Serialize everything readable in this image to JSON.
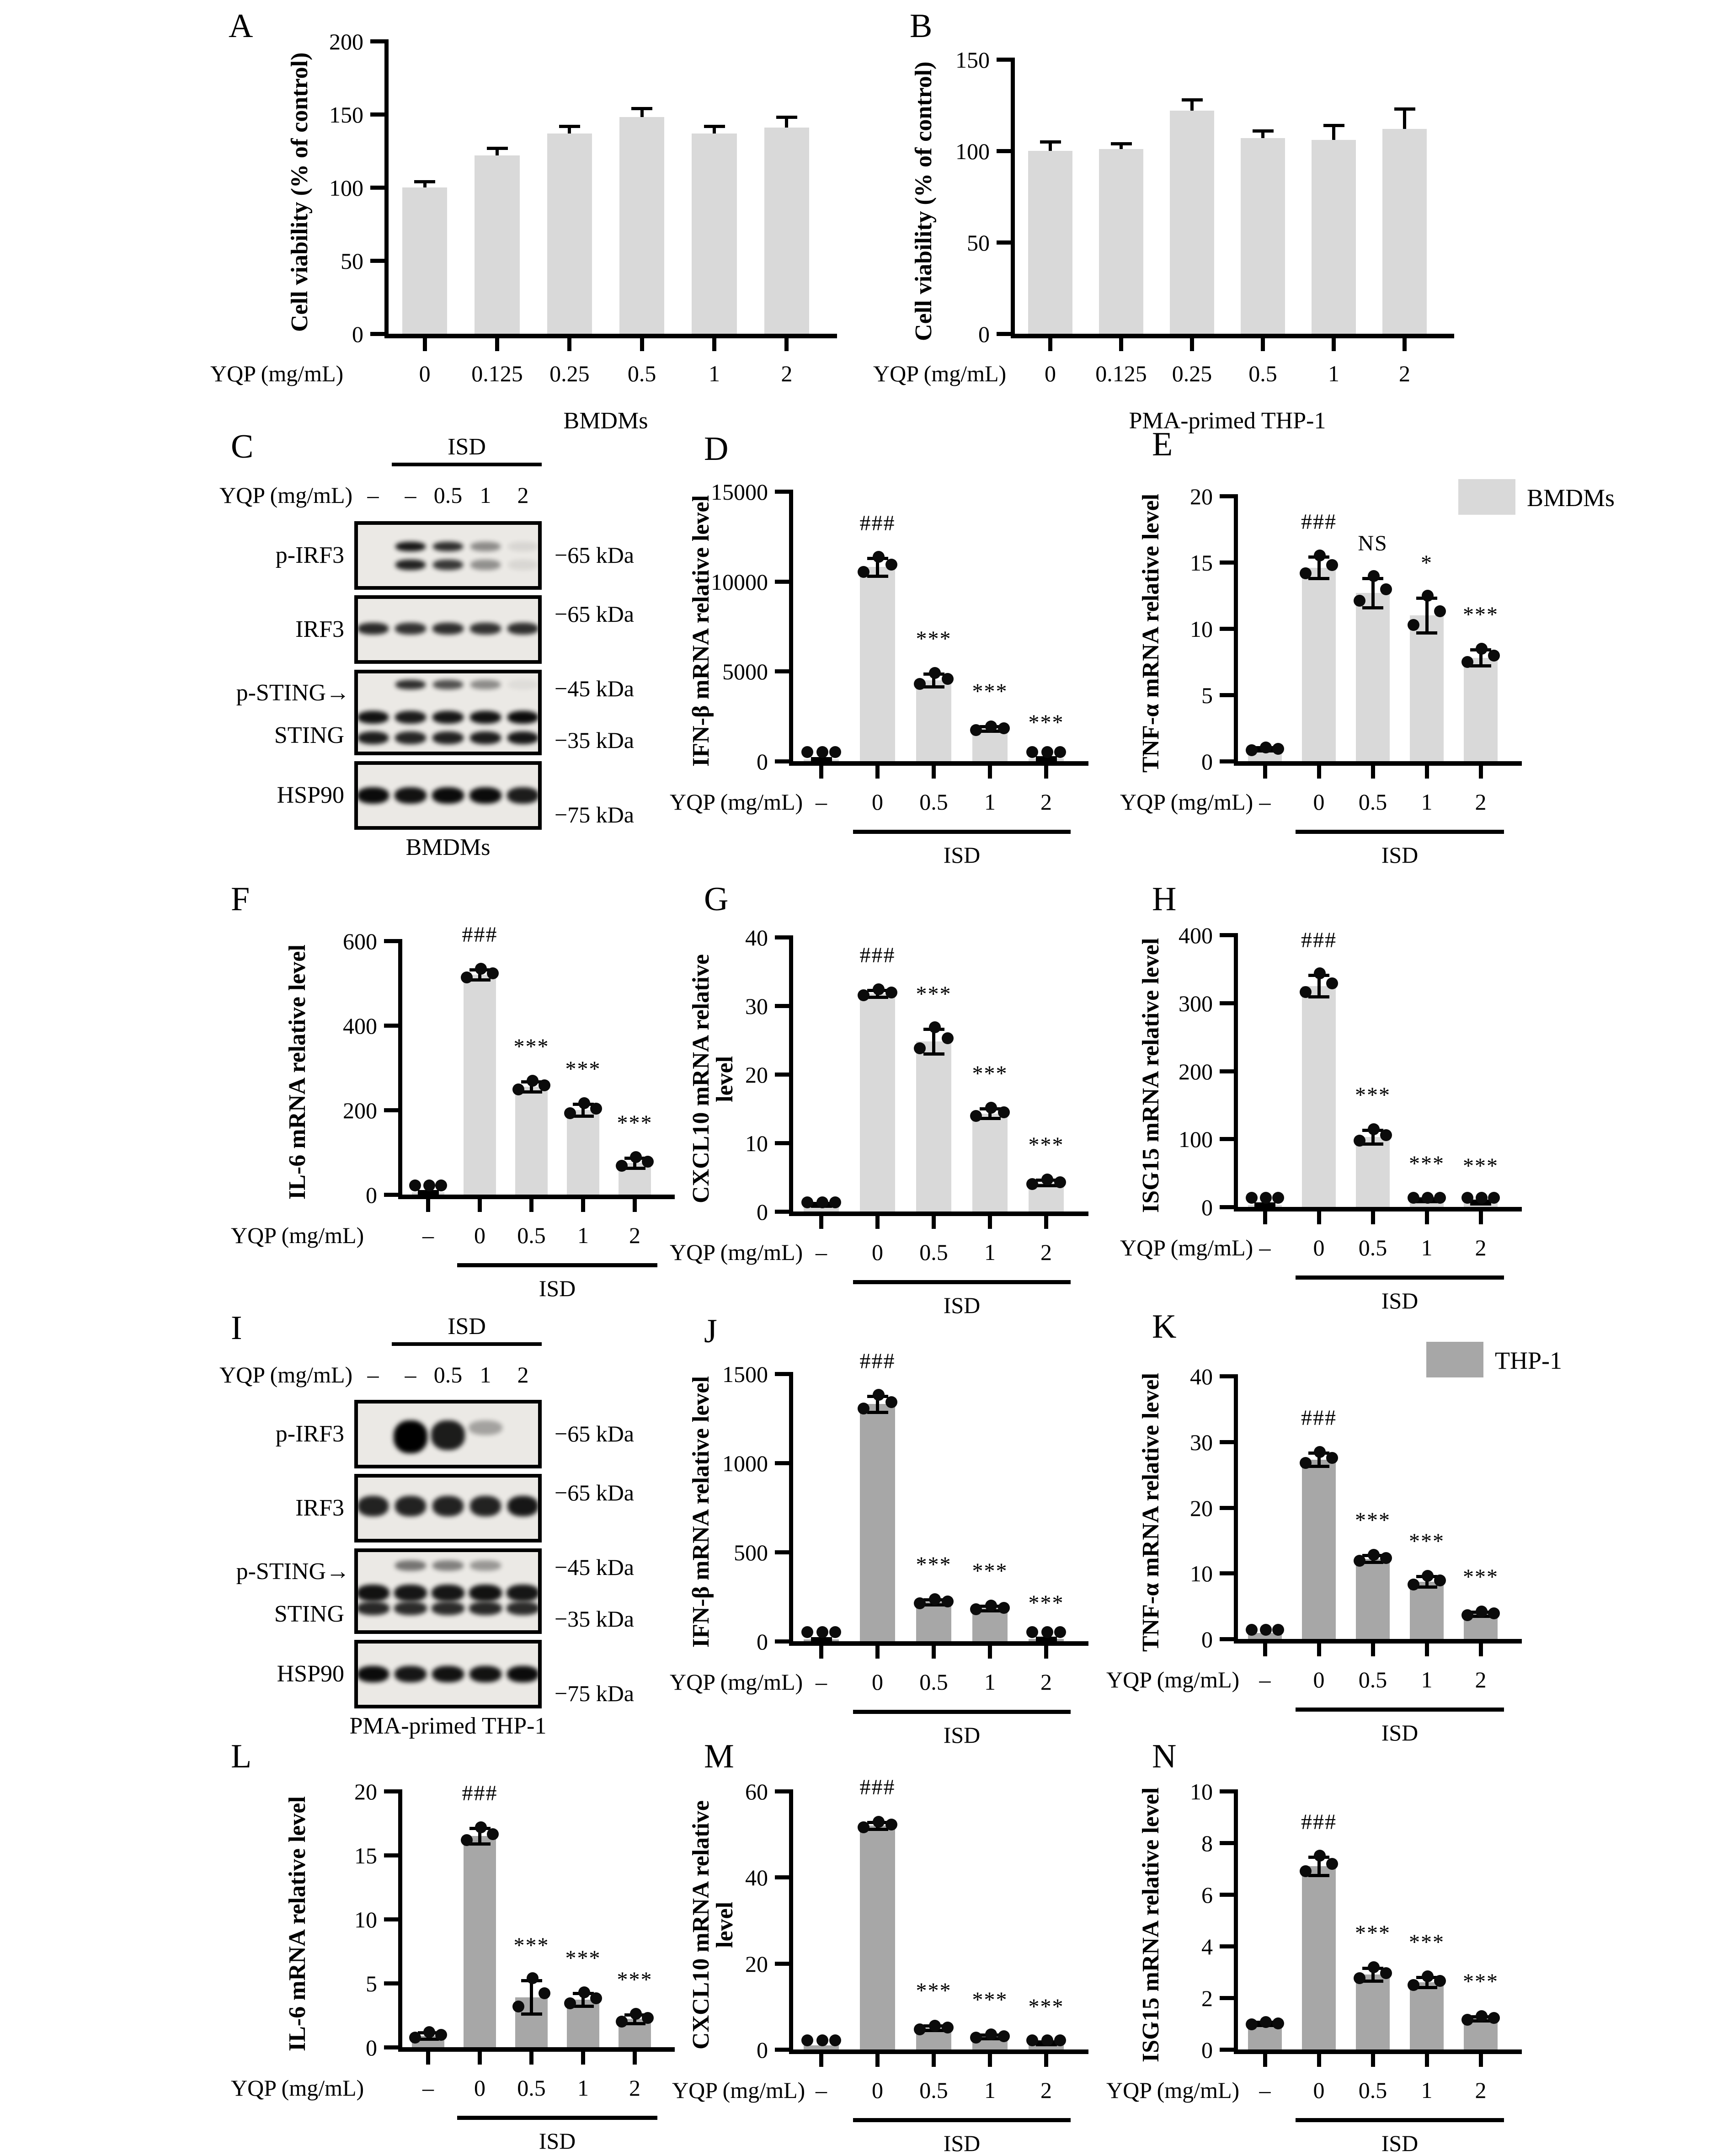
{
  "figure": {
    "background": "#ffffff"
  },
  "colors": {
    "bmdm_bar": "#d9d9d9",
    "thp1_bar": "#a7a7a7",
    "axis": "#000000",
    "dot": "#0b0b0b"
  },
  "common": {
    "x_prefix_label": "YQP (mg/mL)",
    "isd_label": "ISD"
  },
  "chart_data": [
    {
      "panel": "A",
      "letter": "A",
      "type": "bar",
      "ylabel": "Cell viability (% of control)",
      "ylim": [
        0,
        200
      ],
      "yticks": [
        0,
        50,
        100,
        150,
        200
      ],
      "categories": [
        "0",
        "0.125",
        "0.25",
        "0.5",
        "1",
        "2"
      ],
      "values": [
        100,
        122,
        137,
        148,
        137,
        141
      ],
      "errors": [
        4,
        5,
        5,
        6,
        5,
        7
      ],
      "sig": null,
      "dots_per_bar": 0,
      "isd_group": null,
      "bottom_label": "BMDMs",
      "bar_color": "#d9d9d9",
      "xlabel": "YQP (mg/mL)",
      "grid": false,
      "legend": null
    },
    {
      "panel": "B",
      "letter": "B",
      "type": "bar",
      "ylabel": "Cell viability (% of control)",
      "ylim": [
        0,
        150
      ],
      "yticks": [
        0,
        50,
        100,
        150
      ],
      "categories": [
        "0",
        "0.125",
        "0.25",
        "0.5",
        "1",
        "2"
      ],
      "values": [
        100,
        101,
        122,
        107,
        106,
        112
      ],
      "errors": [
        5,
        3,
        6,
        4,
        8,
        11
      ],
      "sig": null,
      "dots_per_bar": 0,
      "isd_group": null,
      "bottom_label": "PMA-primed THP-1",
      "bar_color": "#d9d9d9",
      "xlabel": "YQP (mg/mL)",
      "grid": false,
      "legend": null
    },
    {
      "panel": "D",
      "letter": "D",
      "type": "bar",
      "ylabel": "IFN-β mRNA relative level",
      "ylim": [
        0,
        15000
      ],
      "yticks": [
        0,
        5000,
        10000,
        15000
      ],
      "categories": [
        "–",
        "0",
        "0.5",
        "1",
        "2"
      ],
      "values": [
        100,
        10800,
        4500,
        1800,
        150
      ],
      "errors": [
        60,
        500,
        350,
        120,
        60
      ],
      "sig": [
        "",
        "###",
        "***",
        "***",
        "***"
      ],
      "dots_per_bar": 3,
      "isd_group": {
        "label": "ISD",
        "from": 1,
        "to": 4
      },
      "bottom_label": null,
      "bar_color": "#d9d9d9",
      "xlabel": "YQP (mg/mL)",
      "grid": false,
      "legend": null
    },
    {
      "panel": "E",
      "letter": "E",
      "type": "bar",
      "ylabel": "TNF-α mRNA relative level",
      "ylim": [
        0,
        20
      ],
      "yticks": [
        0,
        5,
        10,
        15,
        20
      ],
      "categories": [
        "–",
        "0",
        "0.5",
        "1",
        "2"
      ],
      "values": [
        0.9,
        14.6,
        12.7,
        11,
        7.8
      ],
      "errors": [
        0.12,
        0.8,
        1.1,
        1.3,
        0.6
      ],
      "sig": [
        "",
        "###",
        "NS",
        "*",
        "***"
      ],
      "dots_per_bar": 3,
      "isd_group": {
        "label": "ISD",
        "from": 1,
        "to": 4
      },
      "bottom_label": null,
      "bar_color": "#d9d9d9",
      "xlabel": "YQP (mg/mL)",
      "grid": false,
      "legend": {
        "label": "BMDMs"
      }
    },
    {
      "panel": "F",
      "letter": "F",
      "type": "bar",
      "ylabel": "IL-6 mRNA relative level",
      "ylim": [
        0,
        600
      ],
      "yticks": [
        0,
        200,
        400,
        600
      ],
      "categories": [
        "–",
        "0",
        "0.5",
        "1",
        "2"
      ],
      "values": [
        5,
        520,
        255,
        200,
        75
      ],
      "errors": [
        3,
        12,
        12,
        14,
        12
      ],
      "sig": [
        "",
        "###",
        "***",
        "***",
        "***"
      ],
      "dots_per_bar": 3,
      "isd_group": {
        "label": "ISD",
        "from": 1,
        "to": 4
      },
      "bottom_label": null,
      "bar_color": "#d9d9d9",
      "xlabel": "YQP (mg/mL)",
      "grid": false,
      "legend": null
    },
    {
      "panel": "G",
      "letter": "G",
      "type": "bar",
      "ylabel": "CXCL10 mRNA relative level",
      "ylim": [
        0,
        40
      ],
      "yticks": [
        0,
        10,
        20,
        30,
        40
      ],
      "categories": [
        "–",
        "0",
        "0.5",
        "1",
        "2"
      ],
      "values": [
        1,
        31.8,
        24.8,
        14.3,
        4.2
      ],
      "errors": [
        0.2,
        0.5,
        1.8,
        0.7,
        0.4
      ],
      "sig": [
        "",
        "###",
        "***",
        "***",
        "***"
      ],
      "dots_per_bar": 3,
      "isd_group": {
        "label": "ISD",
        "from": 1,
        "to": 4
      },
      "bottom_label": null,
      "bar_color": "#d9d9d9",
      "xlabel": "YQP (mg/mL)",
      "grid": false,
      "legend": null
    },
    {
      "panel": "H",
      "letter": "H",
      "type": "bar",
      "ylabel": "ISG15 mRNA relative level",
      "ylim": [
        0,
        400
      ],
      "yticks": [
        0,
        100,
        200,
        300,
        400
      ],
      "categories": [
        "–",
        "0",
        "0.5",
        "1",
        "2"
      ],
      "values": [
        3,
        325,
        103,
        10,
        7
      ],
      "errors": [
        2,
        16,
        10,
        2,
        2
      ],
      "sig": [
        "",
        "###",
        "***",
        "***",
        "***"
      ],
      "dots_per_bar": 3,
      "isd_group": {
        "label": "ISD",
        "from": 1,
        "to": 4
      },
      "bottom_label": null,
      "bar_color": "#d9d9d9",
      "xlabel": "YQP (mg/mL)",
      "grid": false,
      "legend": null
    },
    {
      "panel": "J",
      "letter": "J",
      "type": "bar",
      "ylabel": "IFN-β mRNA relative level",
      "ylim": [
        0,
        1500
      ],
      "yticks": [
        0,
        500,
        1000,
        1500
      ],
      "categories": [
        "–",
        "0",
        "0.5",
        "1",
        "2"
      ],
      "values": [
        10,
        1330,
        220,
        185,
        12
      ],
      "errors": [
        6,
        45,
        14,
        12,
        6
      ],
      "sig": [
        "",
        "###",
        "***",
        "***",
        "***"
      ],
      "dots_per_bar": 3,
      "isd_group": {
        "label": "ISD",
        "from": 1,
        "to": 4
      },
      "bottom_label": null,
      "bar_color": "#a7a7a7",
      "xlabel": "YQP (mg/mL)",
      "grid": false,
      "legend": null
    },
    {
      "panel": "K",
      "letter": "K",
      "type": "bar",
      "ylabel": "TNF-α mRNA relative level",
      "ylim": [
        0,
        40
      ],
      "yticks": [
        0,
        10,
        20,
        30,
        40
      ],
      "categories": [
        "–",
        "0",
        "0.5",
        "1",
        "2"
      ],
      "values": [
        0.9,
        27.3,
        12.2,
        8.7,
        3.8
      ],
      "errors": [
        0.12,
        1.0,
        0.5,
        0.8,
        0.3
      ],
      "sig": [
        "",
        "###",
        "***",
        "***",
        "***"
      ],
      "dots_per_bar": 3,
      "isd_group": {
        "label": "ISD",
        "from": 1,
        "to": 4
      },
      "bottom_label": null,
      "bar_color": "#a7a7a7",
      "xlabel": "YQP (mg/mL)",
      "grid": false,
      "legend": {
        "label": "THP-1"
      }
    },
    {
      "panel": "L",
      "letter": "L",
      "type": "bar",
      "ylabel": "IL-6 mRNA relative level",
      "ylim": [
        0,
        20
      ],
      "yticks": [
        0,
        5,
        10,
        15,
        20
      ],
      "categories": [
        "–",
        "0",
        "0.5",
        "1",
        "2"
      ],
      "values": [
        0.9,
        16.5,
        3.9,
        3.7,
        2.2
      ],
      "errors": [
        0.25,
        0.6,
        1.3,
        0.5,
        0.35
      ],
      "sig": [
        "",
        "###",
        "***",
        "***",
        "***"
      ],
      "dots_per_bar": 3,
      "isd_group": {
        "label": "ISD",
        "from": 1,
        "to": 4
      },
      "bottom_label": null,
      "bar_color": "#a7a7a7",
      "xlabel": "YQP (mg/mL)",
      "grid": false,
      "legend": null
    },
    {
      "panel": "M",
      "letter": "M",
      "type": "bar",
      "ylabel": "CXCL10 mRNA relative level",
      "ylim": [
        0,
        60
      ],
      "yticks": [
        0,
        20,
        40,
        60
      ],
      "categories": [
        "–",
        "0",
        "0.5",
        "1",
        "2"
      ],
      "values": [
        1,
        52,
        5,
        3,
        1.5
      ],
      "errors": [
        0.2,
        0.8,
        0.5,
        0.4,
        0.3
      ],
      "sig": [
        "",
        "###",
        "***",
        "***",
        "***"
      ],
      "dots_per_bar": 3,
      "isd_group": {
        "label": "ISD",
        "from": 1,
        "to": 4
      },
      "bottom_label": null,
      "bar_color": "#a7a7a7",
      "xlabel": "YQP (mg/mL)",
      "grid": false,
      "legend": null
    },
    {
      "panel": "N",
      "letter": "N",
      "type": "bar",
      "ylabel": "ISG15 mRNA relative level",
      "ylim": [
        0,
        10
      ],
      "yticks": [
        0,
        2,
        4,
        6,
        8,
        10
      ],
      "categories": [
        "–",
        "0",
        "0.5",
        "1",
        "2"
      ],
      "values": [
        1,
        7.1,
        2.9,
        2.6,
        1.2
      ],
      "errors": [
        0.06,
        0.35,
        0.25,
        0.2,
        0.08
      ],
      "sig": [
        "",
        "###",
        "***",
        "***",
        "***"
      ],
      "dots_per_bar": 3,
      "isd_group": {
        "label": "ISD",
        "from": 1,
        "to": 4
      },
      "bottom_label": null,
      "bar_color": "#a7a7a7",
      "xlabel": "YQP (mg/mL)",
      "grid": false,
      "legend": null
    }
  ],
  "blots": {
    "C": {
      "letter": "C",
      "treatment_header": "ISD",
      "yqp_label": "YQP (mg/mL)",
      "lane_values": [
        "–",
        "–",
        "0.5",
        "1",
        "2"
      ],
      "bottom_label": "BMDMs",
      "rows": [
        {
          "label": "p-IRF3",
          "band_style": "double",
          "intensities": [
            0,
            0.9,
            0.8,
            0.4,
            0.08
          ],
          "markers": [
            {
              "text": "−65 kDa",
              "pos": "middle"
            }
          ]
        },
        {
          "label": "IRF3",
          "band_style": "single",
          "intensities": [
            0.82,
            0.78,
            0.8,
            0.78,
            0.8
          ],
          "markers": [
            {
              "text": "−65 kDa",
              "pos": "top"
            }
          ]
        },
        {
          "label": "p-STING→",
          "label2": "STING",
          "band_style": "sting",
          "psting": [
            0,
            0.8,
            0.65,
            0.4,
            0.05
          ],
          "intensities": [
            0.92,
            0.88,
            0.9,
            0.92,
            0.95
          ],
          "markers": [
            {
              "text": "−45 kDa",
              "pos": "top"
            },
            {
              "text": "−35 kDa",
              "pos": "bottom"
            }
          ]
        },
        {
          "label": "HSP90",
          "band_style": "thick",
          "intensities": [
            0.95,
            0.92,
            0.95,
            0.95,
            0.88
          ],
          "markers": [
            {
              "text": "−75 kDa",
              "pos": "bottom"
            }
          ]
        }
      ]
    },
    "I": {
      "letter": "I",
      "treatment_header": "ISD",
      "yqp_label": "YQP (mg/mL)",
      "lane_values": [
        "–",
        "–",
        "0.5",
        "1",
        "2"
      ],
      "bottom_label": "PMA-primed THP-1",
      "rows": [
        {
          "label": "p-IRF3",
          "band_style": "blob",
          "intensities": [
            0,
            1,
            0.88,
            0.3,
            0
          ],
          "markers": [
            {
              "text": "−65 kDa",
              "pos": "middle"
            }
          ]
        },
        {
          "label": "IRF3",
          "band_style": "tall",
          "intensities": [
            0.85,
            0.85,
            0.85,
            0.85,
            0.9
          ],
          "markers": [
            {
              "text": "−65 kDa",
              "pos": "top"
            }
          ]
        },
        {
          "label": "p-STING→",
          "label2": "STING",
          "band_style": "sting2",
          "psting": [
            0,
            0.5,
            0.45,
            0.35,
            0
          ],
          "intensities": [
            0.92,
            0.9,
            0.9,
            0.92,
            0.9
          ],
          "markers": [
            {
              "text": "−45 kDa",
              "pos": "top"
            },
            {
              "text": "−35 kDa",
              "pos": "bottom"
            }
          ]
        },
        {
          "label": "HSP90",
          "band_style": "thick",
          "intensities": [
            0.95,
            0.9,
            0.92,
            0.92,
            0.95
          ],
          "markers": [
            {
              "text": "−75 kDa",
              "pos": "bottom"
            }
          ]
        }
      ]
    }
  }
}
